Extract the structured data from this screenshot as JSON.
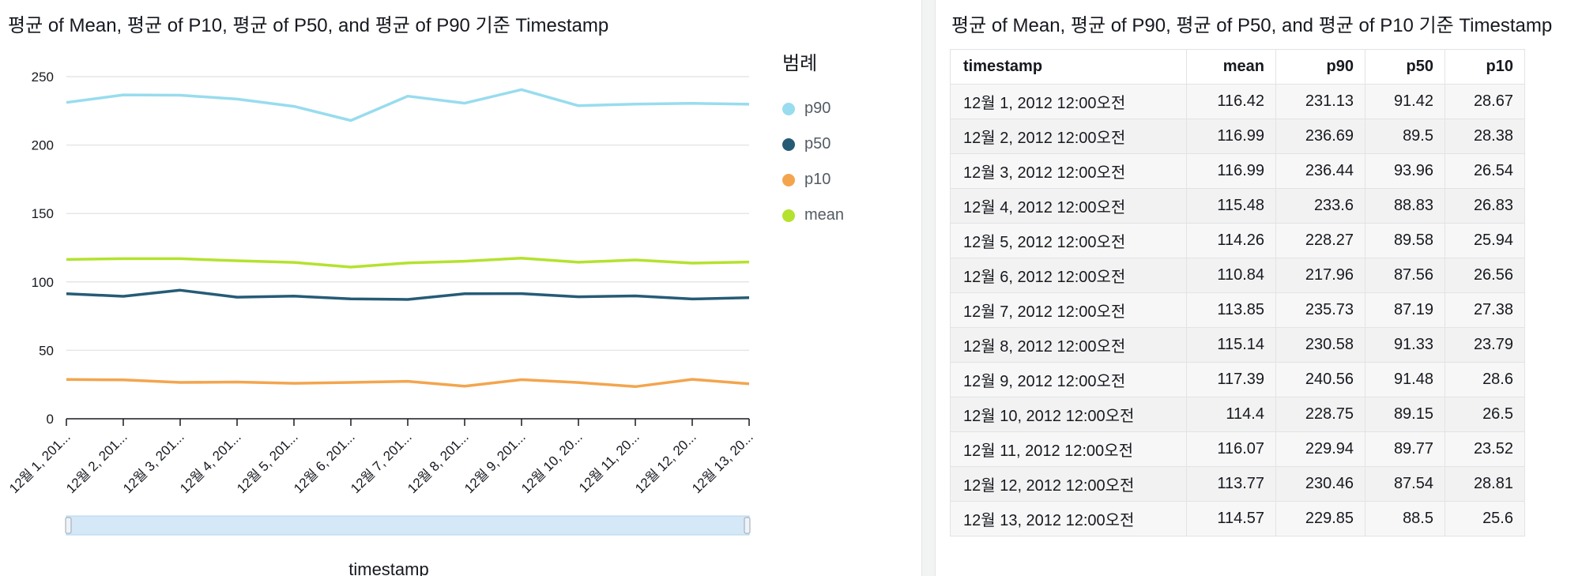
{
  "left_visual": {
    "title": "평균 of Mean, 평균 of P10, 평균 of P50, and 평균 of P90 기준 Timestamp",
    "legend_title": "범례"
  },
  "right_visual": {
    "title": "평균 of Mean, 평균 of P90, 평균 of P50, and 평균 of P10 기준 Timestamp",
    "columns": [
      "timestamp",
      "mean",
      "p90",
      "p50",
      "p10"
    ],
    "rows": [
      [
        "12월 1, 2012 12:00오전",
        "116.42",
        "231.13",
        "91.42",
        "28.67"
      ],
      [
        "12월 2, 2012 12:00오전",
        "116.99",
        "236.69",
        "89.5",
        "28.38"
      ],
      [
        "12월 3, 2012 12:00오전",
        "116.99",
        "236.44",
        "93.96",
        "26.54"
      ],
      [
        "12월 4, 2012 12:00오전",
        "115.48",
        "233.6",
        "88.83",
        "26.83"
      ],
      [
        "12월 5, 2012 12:00오전",
        "114.26",
        "228.27",
        "89.58",
        "25.94"
      ],
      [
        "12월 6, 2012 12:00오전",
        "110.84",
        "217.96",
        "87.56",
        "26.56"
      ],
      [
        "12월 7, 2012 12:00오전",
        "113.85",
        "235.73",
        "87.19",
        "27.38"
      ],
      [
        "12월 8, 2012 12:00오전",
        "115.14",
        "230.58",
        "91.33",
        "23.79"
      ],
      [
        "12월 9, 2012 12:00오전",
        "117.39",
        "240.56",
        "91.48",
        "28.6"
      ],
      [
        "12월 10, 2012 12:00오전",
        "114.4",
        "228.75",
        "89.15",
        "26.5"
      ],
      [
        "12월 11, 2012 12:00오전",
        "116.07",
        "229.94",
        "89.77",
        "23.52"
      ],
      [
        "12월 12, 2012 12:00오전",
        "113.77",
        "230.46",
        "87.54",
        "28.81"
      ],
      [
        "12월 13, 2012 12:00오전",
        "114.57",
        "229.85",
        "88.5",
        "25.6"
      ]
    ]
  },
  "chart_data": {
    "type": "line",
    "title": "평균 of Mean, 평균 of P10, 평균 of P50, and 평균 of P90 기준 Timestamp",
    "xlabel": "timestamp",
    "ylabel": "",
    "categories": [
      "12월 1, 201...",
      "12월 2, 201...",
      "12월 3, 201...",
      "12월 4, 201...",
      "12월 5, 201...",
      "12월 6, 201...",
      "12월 7, 201...",
      "12월 8, 201...",
      "12월 9, 201...",
      "12월 10, 20...",
      "12월 11, 20...",
      "12월 12, 20...",
      "12월 13, 20..."
    ],
    "ylim": [
      0,
      250
    ],
    "yticks": [
      0,
      50,
      100,
      150,
      200,
      250
    ],
    "grid": true,
    "legend_position": "right",
    "series": [
      {
        "name": "p90",
        "color": "#98dcee",
        "values": [
          231.13,
          236.69,
          236.44,
          233.6,
          228.27,
          217.96,
          235.73,
          230.58,
          240.56,
          228.75,
          229.94,
          230.46,
          229.85
        ]
      },
      {
        "name": "p50",
        "color": "#265b76",
        "values": [
          91.42,
          89.5,
          93.96,
          88.83,
          89.58,
          87.56,
          87.19,
          91.33,
          91.48,
          89.15,
          89.77,
          87.54,
          88.5
        ]
      },
      {
        "name": "p10",
        "color": "#f3a54e",
        "values": [
          28.67,
          28.38,
          26.54,
          26.83,
          25.94,
          26.56,
          27.38,
          23.79,
          28.6,
          26.5,
          23.52,
          28.81,
          25.6
        ]
      },
      {
        "name": "mean",
        "color": "#b4e22e",
        "values": [
          116.42,
          116.99,
          116.99,
          115.48,
          114.26,
          110.84,
          113.85,
          115.14,
          117.39,
          114.4,
          116.07,
          113.77,
          114.57
        ]
      }
    ]
  }
}
